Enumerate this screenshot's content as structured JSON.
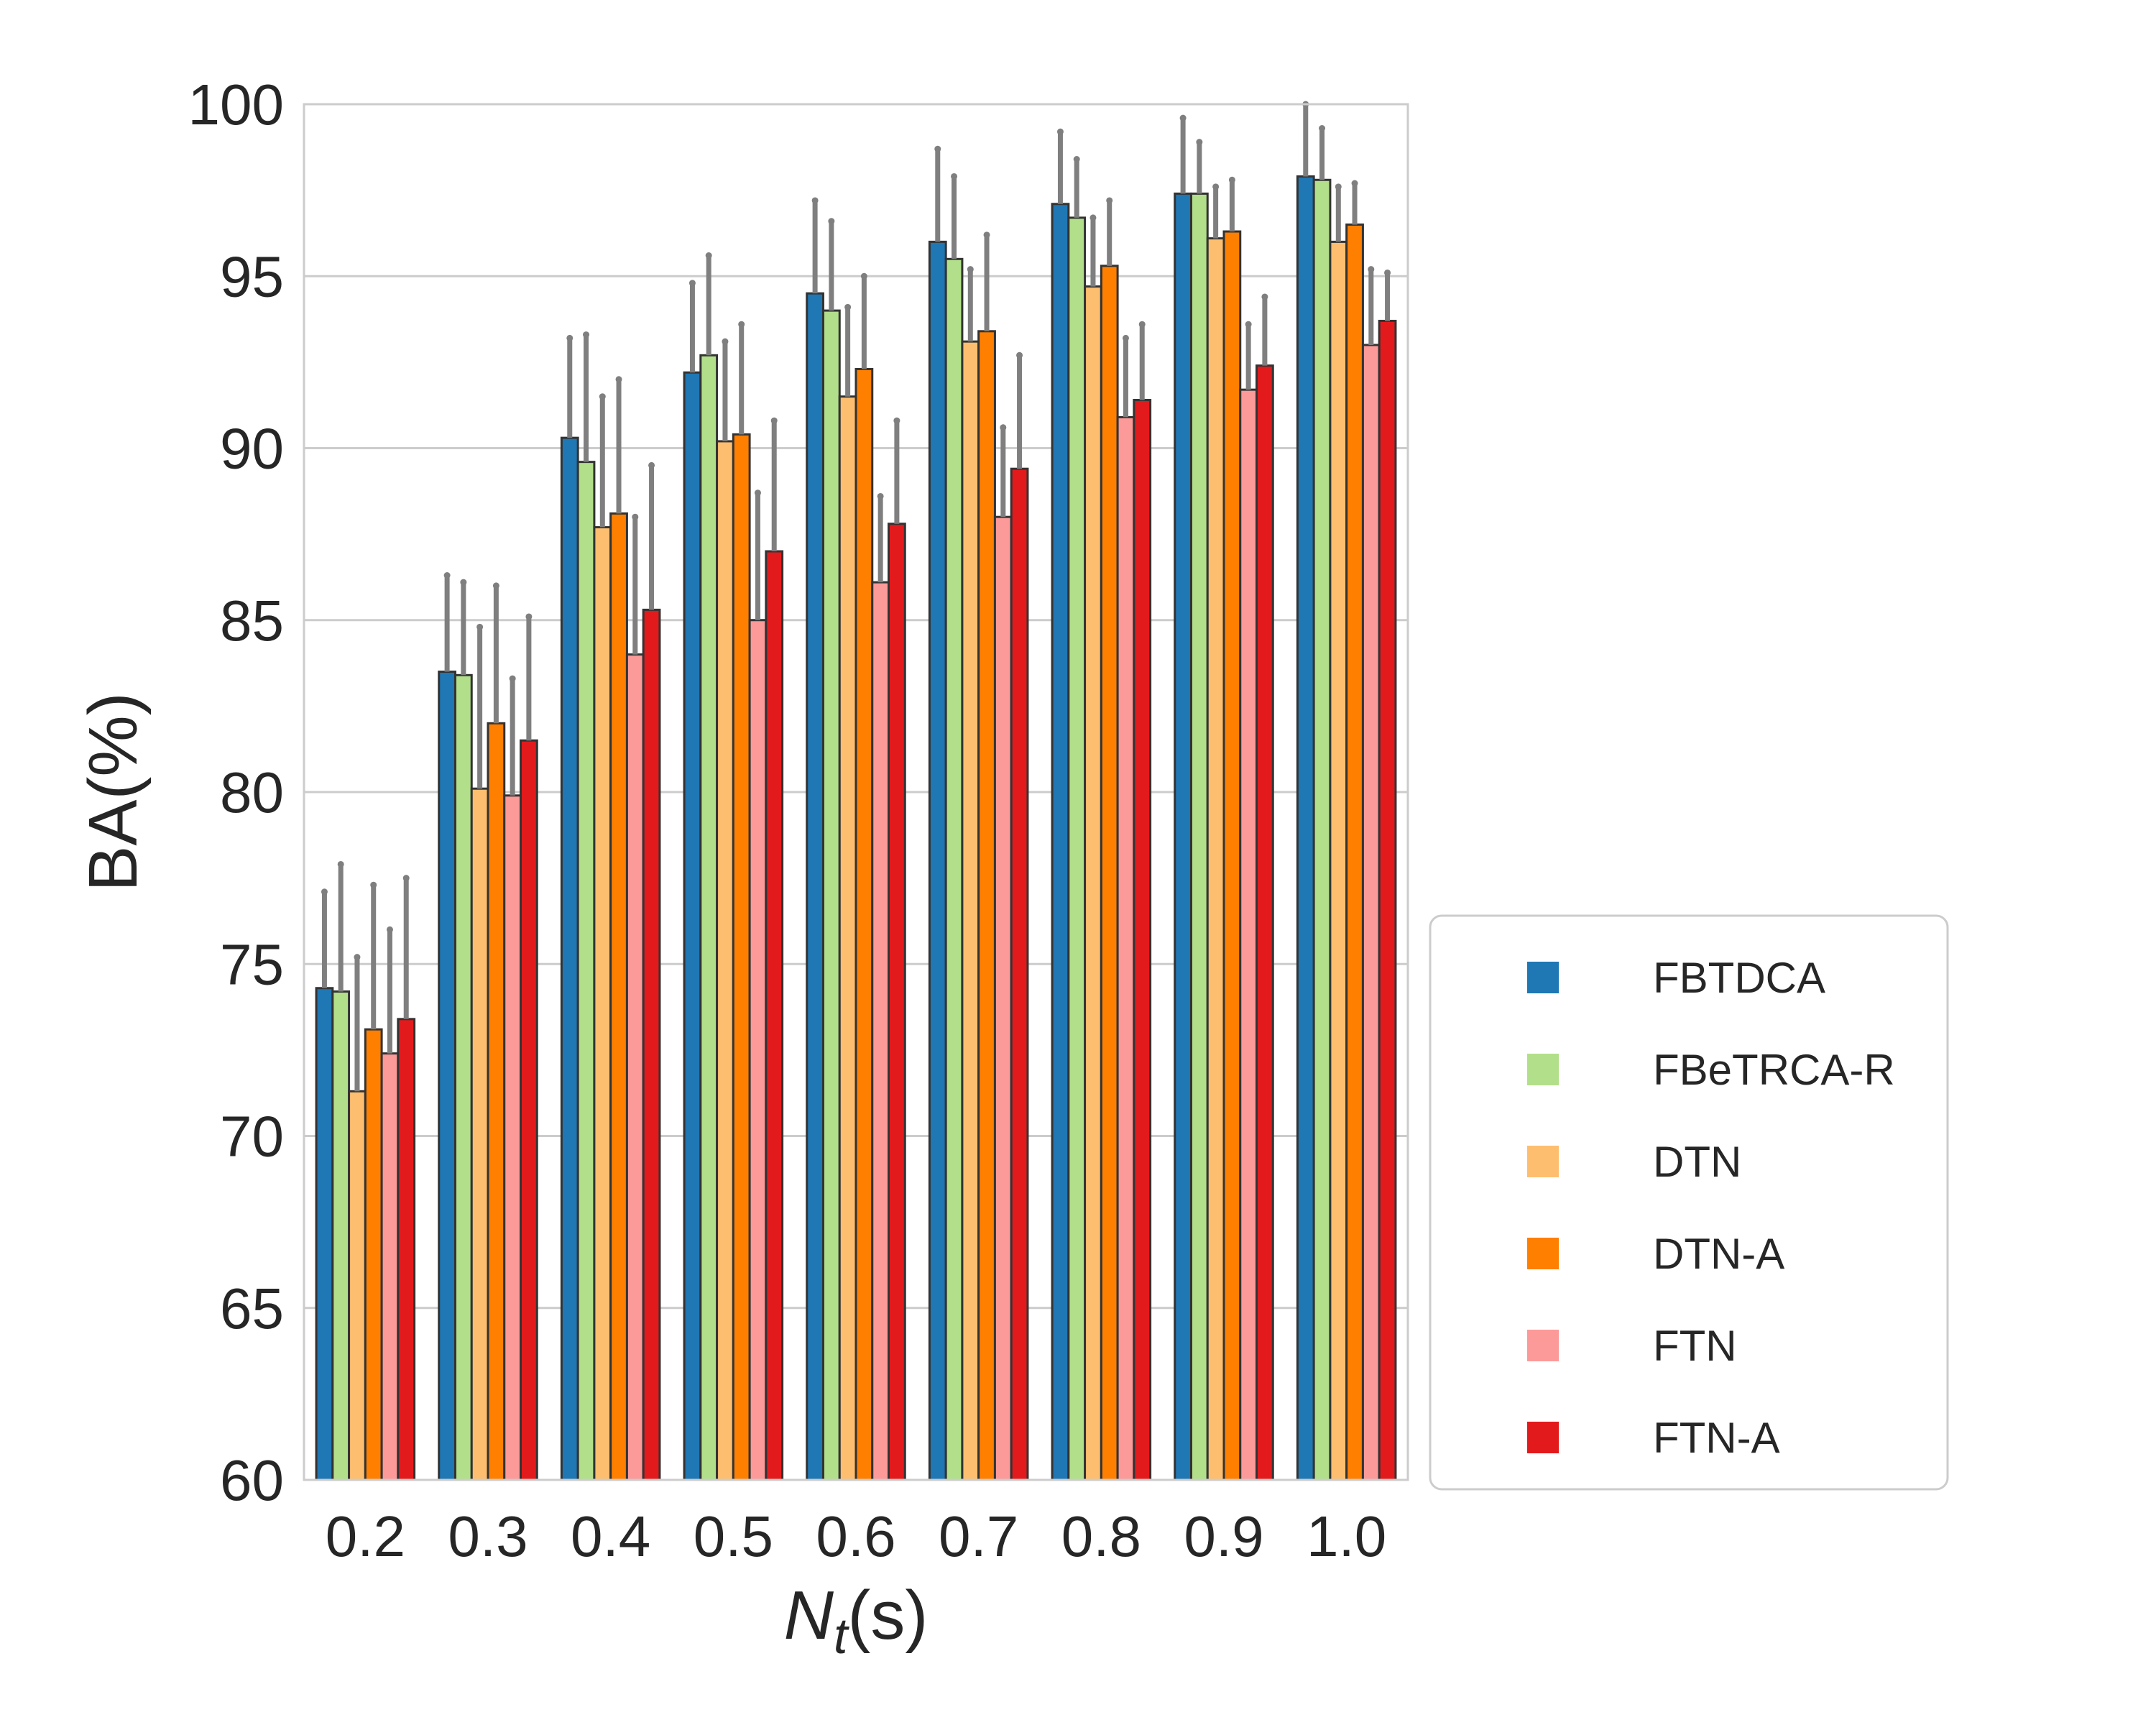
{
  "chart_data": {
    "type": "bar",
    "title": "",
    "xlabel": "N_t(s)",
    "xlabel_main": "N",
    "xlabel_sub": "t",
    "xlabel_rest": "(s)",
    "ylabel": "BA(%)",
    "ylim": [
      60,
      100
    ],
    "yticks": [
      60,
      65,
      70,
      75,
      80,
      85,
      90,
      95,
      100
    ],
    "grid": "horizontal",
    "legend_position": "lower-right outside",
    "categories": [
      "0.2",
      "0.3",
      "0.4",
      "0.5",
      "0.6",
      "0.7",
      "0.8",
      "0.9",
      "1.0"
    ],
    "series": [
      {
        "name": "FBTDCA",
        "color": "#1f77b4",
        "legend_color": "#1f77b4",
        "values": [
          74.3,
          83.5,
          90.3,
          92.2,
          94.5,
          96.0,
          97.1,
          97.4,
          97.9
        ],
        "errors": [
          2.8,
          2.8,
          2.9,
          2.6,
          2.7,
          2.7,
          2.1,
          2.2,
          2.1
        ]
      },
      {
        "name": "FBeTRCA-R",
        "color": "#b2df8a",
        "legend_color": "#b2df8a",
        "values": [
          74.2,
          83.4,
          89.6,
          92.7,
          94.0,
          95.5,
          96.7,
          97.4,
          97.8
        ],
        "errors": [
          3.7,
          2.7,
          3.7,
          2.9,
          2.6,
          2.4,
          1.7,
          1.5,
          1.5
        ]
      },
      {
        "name": "DTN",
        "color": "#fdbf6f",
        "legend_color": "#fdbf6f",
        "values": [
          71.3,
          80.1,
          87.7,
          90.2,
          91.5,
          93.1,
          94.7,
          96.1,
          96.0
        ],
        "errors": [
          3.9,
          4.7,
          3.8,
          2.9,
          2.6,
          2.1,
          2.0,
          1.5,
          1.6
        ]
      },
      {
        "name": "DTN-A",
        "color": "#ff7f00",
        "legend_color": "#ff7f00",
        "values": [
          73.1,
          82.0,
          88.1,
          90.4,
          92.3,
          93.4,
          95.3,
          96.3,
          96.5
        ],
        "errors": [
          4.2,
          4.0,
          3.9,
          3.2,
          2.7,
          2.8,
          1.9,
          1.5,
          1.2
        ]
      },
      {
        "name": "FTN",
        "color": "#fb9a99",
        "legend_color": "#fb9a99",
        "values": [
          72.4,
          79.9,
          84.0,
          85.0,
          86.1,
          88.0,
          90.9,
          91.7,
          93.0
        ],
        "errors": [
          3.6,
          3.4,
          4.0,
          3.7,
          2.5,
          2.6,
          2.3,
          1.9,
          2.2
        ]
      },
      {
        "name": "FTN-A",
        "color": "#e31a1c",
        "legend_color": "#e31a1c",
        "values": [
          73.4,
          81.5,
          85.3,
          87.0,
          87.8,
          89.4,
          91.4,
          92.4,
          93.7
        ],
        "errors": [
          4.1,
          3.6,
          4.2,
          3.8,
          3.0,
          3.3,
          2.2,
          2.0,
          1.4
        ]
      }
    ]
  },
  "style": {
    "bar_edge": "#333333",
    "error_color": "#7f7f7f",
    "grid_color": "#cccccc",
    "frame_color": "#cccccc",
    "text_color": "#262626"
  }
}
